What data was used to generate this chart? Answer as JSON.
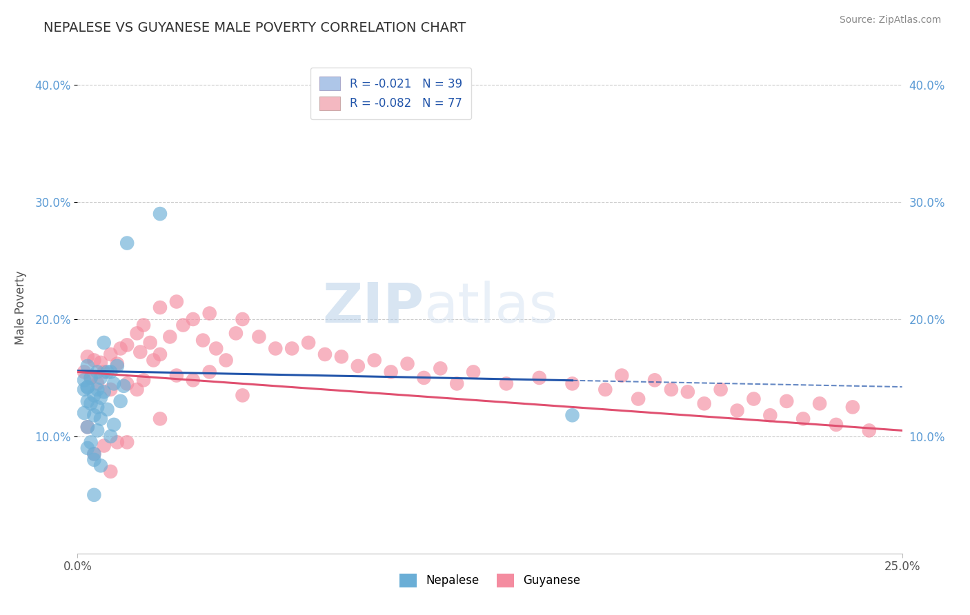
{
  "title": "NEPALESE VS GUYANESE MALE POVERTY CORRELATION CHART",
  "ylabel": "Male Poverty",
  "source_text": "Source: ZipAtlas.com",
  "watermark_zip": "ZIP",
  "watermark_atlas": "atlas",
  "xlim": [
    0.0,
    0.25
  ],
  "ylim": [
    0.0,
    0.42
  ],
  "ytick_positions": [
    0.1,
    0.2,
    0.3,
    0.4
  ],
  "ytick_labels": [
    "10.0%",
    "20.0%",
    "30.0%",
    "40.0%"
  ],
  "legend_labels": [
    "R = -0.021   N = 39",
    "R = -0.082   N = 77"
  ],
  "legend_colors": [
    "#aec6e8",
    "#f4b8c1"
  ],
  "nepalese_color": "#6aaed6",
  "guyanese_color": "#f48ca0",
  "trend_nepalese_color": "#2255aa",
  "trend_guyanese_color": "#e05070",
  "background_color": "#ffffff",
  "grid_color": "#cccccc",
  "nepalese_x": [
    0.002,
    0.002,
    0.003,
    0.003,
    0.003,
    0.003,
    0.004,
    0.004,
    0.005,
    0.005,
    0.005,
    0.005,
    0.006,
    0.006,
    0.006,
    0.007,
    0.007,
    0.007,
    0.008,
    0.008,
    0.009,
    0.009,
    0.01,
    0.011,
    0.011,
    0.012,
    0.013,
    0.014,
    0.015,
    0.025,
    0.15,
    0.002,
    0.003,
    0.006,
    0.004,
    0.003,
    0.005,
    0.007,
    0.01
  ],
  "nepalese_y": [
    0.14,
    0.12,
    0.16,
    0.142,
    0.13,
    0.108,
    0.15,
    0.095,
    0.135,
    0.118,
    0.085,
    0.05,
    0.155,
    0.14,
    0.105,
    0.15,
    0.133,
    0.115,
    0.18,
    0.138,
    0.155,
    0.123,
    0.155,
    0.145,
    0.11,
    0.16,
    0.13,
    0.143,
    0.265,
    0.29,
    0.118,
    0.148,
    0.142,
    0.125,
    0.128,
    0.09,
    0.08,
    0.075,
    0.1
  ],
  "guyanese_x": [
    0.002,
    0.003,
    0.003,
    0.004,
    0.005,
    0.005,
    0.006,
    0.007,
    0.008,
    0.008,
    0.01,
    0.01,
    0.01,
    0.012,
    0.012,
    0.013,
    0.015,
    0.015,
    0.015,
    0.018,
    0.018,
    0.019,
    0.02,
    0.02,
    0.022,
    0.023,
    0.025,
    0.025,
    0.025,
    0.028,
    0.03,
    0.03,
    0.032,
    0.035,
    0.035,
    0.038,
    0.04,
    0.04,
    0.042,
    0.045,
    0.048,
    0.05,
    0.05,
    0.055,
    0.06,
    0.065,
    0.07,
    0.075,
    0.08,
    0.085,
    0.09,
    0.095,
    0.1,
    0.105,
    0.11,
    0.115,
    0.12,
    0.13,
    0.14,
    0.15,
    0.16,
    0.165,
    0.17,
    0.175,
    0.18,
    0.185,
    0.19,
    0.195,
    0.2,
    0.205,
    0.21,
    0.215,
    0.22,
    0.225,
    0.23,
    0.235,
    0.24
  ],
  "guyanese_y": [
    0.155,
    0.168,
    0.108,
    0.15,
    0.165,
    0.085,
    0.145,
    0.163,
    0.155,
    0.092,
    0.17,
    0.14,
    0.07,
    0.162,
    0.095,
    0.175,
    0.178,
    0.145,
    0.095,
    0.188,
    0.14,
    0.172,
    0.195,
    0.148,
    0.18,
    0.165,
    0.21,
    0.17,
    0.115,
    0.185,
    0.215,
    0.152,
    0.195,
    0.2,
    0.148,
    0.182,
    0.205,
    0.155,
    0.175,
    0.165,
    0.188,
    0.2,
    0.135,
    0.185,
    0.175,
    0.175,
    0.18,
    0.17,
    0.168,
    0.16,
    0.165,
    0.155,
    0.162,
    0.15,
    0.158,
    0.145,
    0.155,
    0.145,
    0.15,
    0.145,
    0.14,
    0.152,
    0.132,
    0.148,
    0.14,
    0.138,
    0.128,
    0.14,
    0.122,
    0.132,
    0.118,
    0.13,
    0.115,
    0.128,
    0.11,
    0.125,
    0.105
  ]
}
